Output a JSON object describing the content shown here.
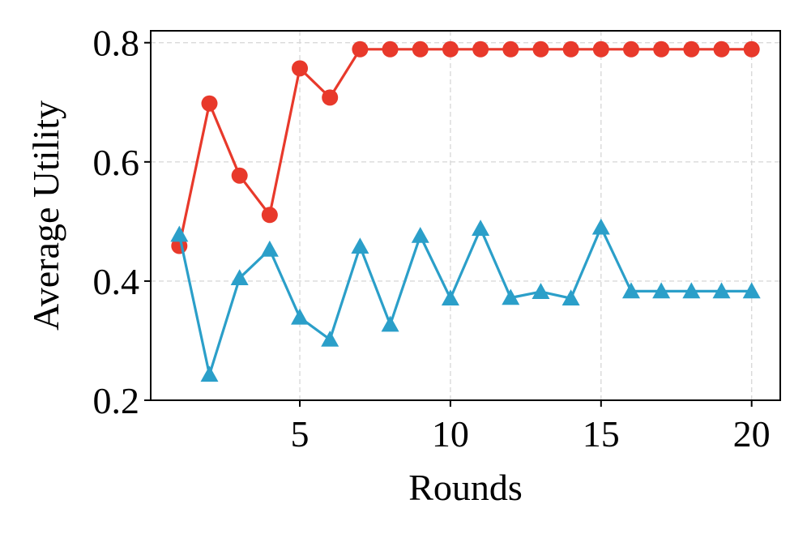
{
  "chart_data": {
    "type": "line",
    "xlabel": "Rounds",
    "ylabel": "Average Utility",
    "xlim": [
      0.05,
      20.95
    ],
    "ylim": [
      0.2,
      0.82
    ],
    "xticks": [
      5,
      10,
      15,
      20
    ],
    "xtick_labels": [
      "5",
      "10",
      "15",
      "20"
    ],
    "yticks": [
      0.2,
      0.4,
      0.6,
      0.8
    ],
    "ytick_labels": [
      "0.2",
      "0.4",
      "0.6",
      "0.8"
    ],
    "grid": true,
    "x": [
      1,
      2,
      3,
      4,
      5,
      6,
      7,
      8,
      9,
      10,
      11,
      12,
      13,
      14,
      15,
      16,
      17,
      18,
      19,
      20
    ],
    "series": [
      {
        "marker": "circle",
        "color": "#e8392b",
        "values": [
          0.459,
          0.698,
          0.577,
          0.511,
          0.757,
          0.708,
          0.789,
          0.789,
          0.789,
          0.789,
          0.789,
          0.789,
          0.789,
          0.789,
          0.789,
          0.789,
          0.789,
          0.789,
          0.789,
          0.789
        ]
      },
      {
        "marker": "triangle",
        "color": "#2b9fc9",
        "values": [
          0.478,
          0.243,
          0.405,
          0.453,
          0.339,
          0.302,
          0.458,
          0.327,
          0.476,
          0.371,
          0.488,
          0.372,
          0.382,
          0.371,
          0.49,
          0.383,
          0.383,
          0.383,
          0.383,
          0.383
        ]
      }
    ]
  }
}
